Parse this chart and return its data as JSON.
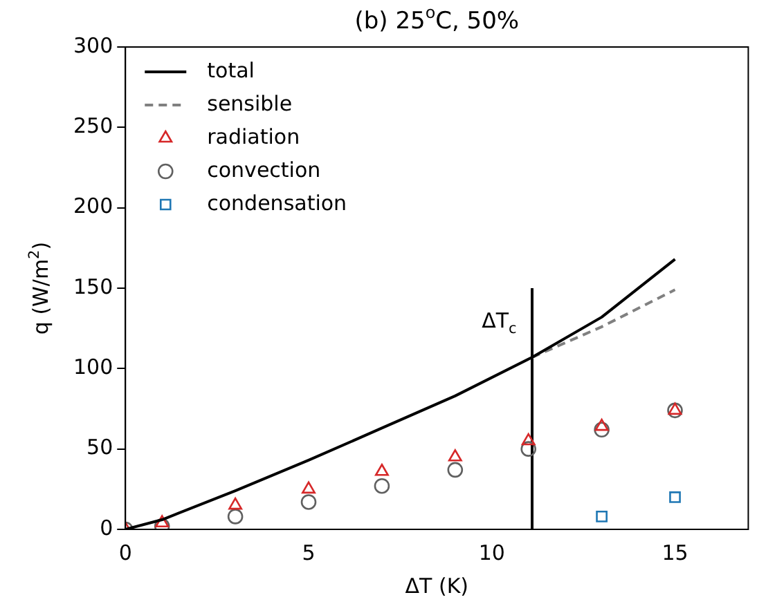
{
  "chart_data": {
    "type": "line",
    "title": "(b) 25$^{o}$C, 50%",
    "xlabel": "ΔT (K)",
    "ylabel": "q (W/m$^{2}$)",
    "xlim": [
      0,
      17
    ],
    "xticks": [
      0,
      5,
      10,
      15
    ],
    "ylim": [
      0,
      300
    ],
    "yticks": [
      0,
      50,
      100,
      150,
      200,
      250,
      300
    ],
    "legend": "top left",
    "grid": false,
    "annotations": [
      "ΔT$_{c}$"
    ],
    "series": [
      {
        "name": "total",
        "type": "line",
        "color": "#000000",
        "line_style": "solid",
        "marker": "none",
        "x": [
          0,
          1,
          3,
          5,
          7,
          9,
          11.1,
          13,
          15
        ],
        "values": [
          0,
          6,
          24,
          43,
          63,
          83,
          107,
          132,
          168
        ]
      },
      {
        "name": "sensible",
        "type": "line",
        "color": "#808080",
        "line_style": "dashed",
        "marker": "none",
        "x": [
          11.1,
          13,
          15
        ],
        "values": [
          107,
          126,
          149
        ]
      },
      {
        "name": "radiation",
        "type": "scatter",
        "color": "#d62728",
        "marker": "triangle",
        "x": [
          0,
          1,
          3,
          5,
          7,
          9,
          11,
          13,
          15
        ],
        "values": [
          0,
          4,
          15,
          25,
          36,
          45,
          55,
          64,
          74
        ]
      },
      {
        "name": "convection",
        "type": "scatter",
        "color": "#606060",
        "marker": "circle",
        "x": [
          0,
          1,
          3,
          5,
          7,
          9,
          11,
          13,
          15
        ],
        "values": [
          0,
          2,
          8,
          17,
          27,
          37,
          50,
          62,
          74
        ]
      },
      {
        "name": "condensation",
        "type": "scatter",
        "color": "#1f77b4",
        "marker": "square",
        "x": [
          13,
          15
        ],
        "values": [
          8,
          20
        ]
      },
      {
        "type": "line",
        "color": "#000000",
        "line_style": "solid",
        "marker": "none",
        "x": [
          11.1,
          11.1
        ],
        "values": [
          0,
          150
        ]
      }
    ]
  }
}
